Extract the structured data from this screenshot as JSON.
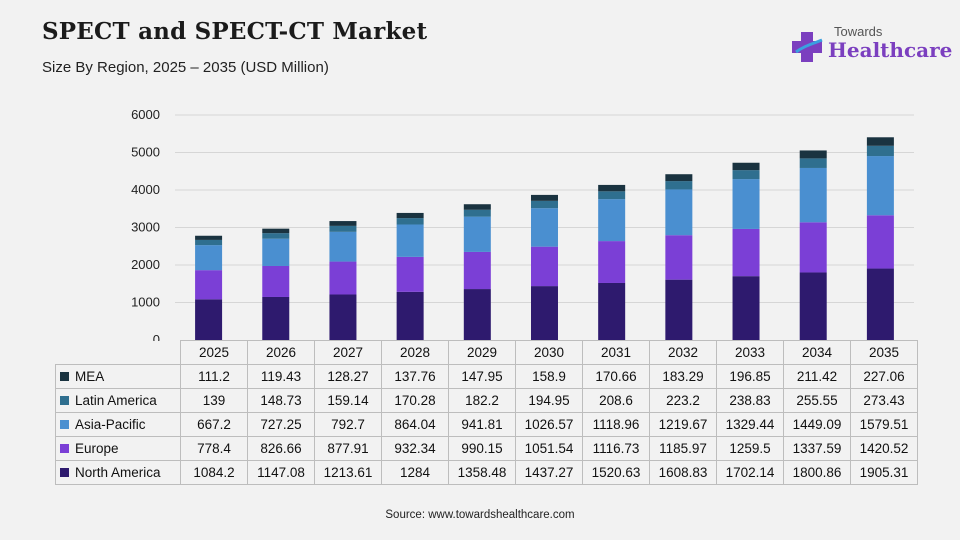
{
  "header": {
    "title": "SPECT and SPECT-CT Market",
    "subtitle": "Size By Region, 2025 – 2035 (USD Million)"
  },
  "logo": {
    "line1": "Towards",
    "line2": "Healthcare",
    "accent": "#7b3fbf"
  },
  "footer": {
    "source": "Source: www.towardshealthcare.com"
  },
  "chart_data": {
    "type": "bar",
    "stacked": true,
    "categories": [
      "2025",
      "2026",
      "2027",
      "2028",
      "2029",
      "2030",
      "2031",
      "2032",
      "2033",
      "2034",
      "2035"
    ],
    "y_ticks": [
      "0",
      "1000",
      "2000",
      "3000",
      "4000",
      "5000",
      "6000"
    ],
    "ylim": [
      0,
      6000
    ],
    "grid": true,
    "legend": "table-below",
    "series": [
      {
        "name": "North America",
        "color": "#2e1a6e",
        "values": [
          "1084.2",
          "1147.08",
          "1213.61",
          "1284",
          "1358.48",
          "1437.27",
          "1520.63",
          "1608.83",
          "1702.14",
          "1800.86",
          "1905.31"
        ]
      },
      {
        "name": "Europe",
        "color": "#7b3fd6",
        "values": [
          "778.4",
          "826.66",
          "877.91",
          "932.34",
          "990.15",
          "1051.54",
          "1116.73",
          "1185.97",
          "1259.5",
          "1337.59",
          "1420.52"
        ]
      },
      {
        "name": "Asia-Pacific",
        "color": "#4a8fd0",
        "values": [
          "667.2",
          "727.25",
          "792.7",
          "864.04",
          "941.81",
          "1026.57",
          "1118.96",
          "1219.67",
          "1329.44",
          "1449.09",
          "1579.51"
        ]
      },
      {
        "name": "Latin America",
        "color": "#2f6f8f",
        "values": [
          "139",
          "148.73",
          "159.14",
          "170.28",
          "182.2",
          "194.95",
          "208.6",
          "223.2",
          "238.83",
          "255.55",
          "273.43"
        ]
      },
      {
        "name": "MEA",
        "color": "#1a3340",
        "values": [
          "111.2",
          "119.43",
          "128.27",
          "137.76",
          "147.95",
          "158.9",
          "170.66",
          "183.29",
          "196.85",
          "211.42",
          "227.06"
        ]
      }
    ]
  }
}
